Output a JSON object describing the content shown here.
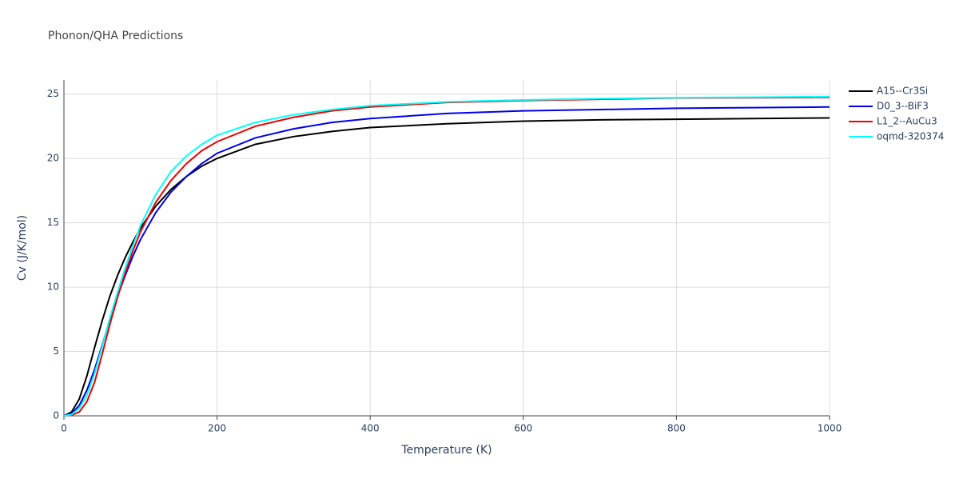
{
  "chart_data": {
    "type": "line",
    "title": "Phonon/QHA Predictions",
    "xlabel": "Temperature (K)",
    "ylabel": "Cv (J/K/mol)",
    "x": [
      0,
      10,
      20,
      30,
      40,
      50,
      60,
      70,
      80,
      90,
      100,
      120,
      140,
      160,
      180,
      200,
      250,
      300,
      350,
      400,
      500,
      600,
      700,
      800,
      900,
      1000
    ],
    "series": [
      {
        "name": "A15--Cr3Si",
        "color": "#000000",
        "values": [
          0,
          0.3,
          1.3,
          3.1,
          5.3,
          7.4,
          9.3,
          10.9,
          12.3,
          13.5,
          14.6,
          16.3,
          17.6,
          18.6,
          19.4,
          20.0,
          21.1,
          21.7,
          22.1,
          22.4,
          22.7,
          22.9,
          23.0,
          23.05,
          23.1,
          23.15
        ]
      },
      {
        "name": "D0_3--BiF3",
        "color": "#0000ee",
        "values": [
          0,
          0.2,
          0.8,
          2.0,
          3.6,
          5.5,
          7.5,
          9.3,
          10.9,
          12.4,
          13.7,
          15.8,
          17.4,
          18.6,
          19.6,
          20.4,
          21.6,
          22.3,
          22.8,
          23.1,
          23.5,
          23.7,
          23.8,
          23.9,
          23.95,
          24.0
        ]
      },
      {
        "name": "L1_2--AuCu3",
        "color": "#ee0000",
        "values": [
          0,
          0.05,
          0.3,
          1.1,
          2.6,
          4.8,
          7.1,
          9.2,
          11.1,
          12.8,
          14.3,
          16.6,
          18.3,
          19.6,
          20.6,
          21.3,
          22.5,
          23.2,
          23.7,
          24.0,
          24.35,
          24.5,
          24.6,
          24.7,
          24.72,
          24.75
        ]
      },
      {
        "name": "oqmd-320374",
        "color": "#00ffff",
        "values": [
          0,
          0.1,
          0.6,
          1.6,
          3.3,
          5.4,
          7.6,
          9.6,
          11.5,
          13.2,
          14.8,
          17.2,
          19.0,
          20.2,
          21.1,
          21.8,
          22.8,
          23.4,
          23.8,
          24.1,
          24.4,
          24.55,
          24.65,
          24.72,
          24.76,
          24.8
        ]
      }
    ],
    "xlim": [
      0,
      1000
    ],
    "ylim": [
      0,
      26.1
    ],
    "xticks": [
      0,
      200,
      400,
      600,
      800,
      1000
    ],
    "yticks": [
      0,
      5,
      10,
      15,
      20,
      25
    ],
    "grid": true,
    "legend": "right"
  }
}
